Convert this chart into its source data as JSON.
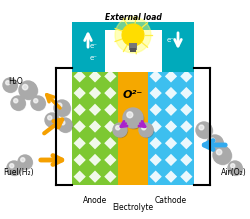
{
  "bg_color": "#ffffff",
  "teal_color": "#00aabb",
  "anode_color": "#7dc832",
  "electrolyte_color": "#f5a800",
  "cathode_color": "#3dbfef",
  "diamond_color": "#ffffff",
  "title": "External load",
  "label_anode": "Anode",
  "label_electrolyte": "Electrolyte",
  "label_cathode": "Cathode",
  "label_h2o": "H₂O",
  "label_fuel": "Fuel(H₂)",
  "label_air": "Air(O₂)",
  "label_o2ion": "O²⁻",
  "sphere_color": "#aaaaaa",
  "arrow_orange": "#f5a000",
  "arrow_blue": "#33aaee",
  "arrow_purple": "#aa22cc",
  "arrow_white": "#ffffff"
}
